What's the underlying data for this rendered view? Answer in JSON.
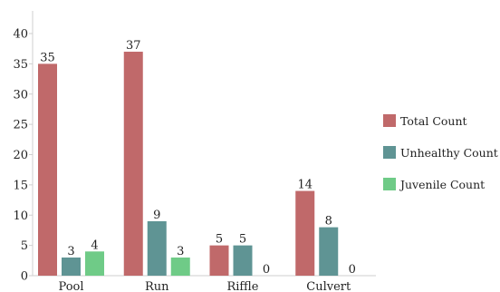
{
  "chart_data": {
    "type": "bar",
    "categories": [
      "Pool",
      "Run",
      "Riffle",
      "Culvert"
    ],
    "series": [
      {
        "name": "Total Count",
        "values": [
          35,
          37,
          5,
          14
        ],
        "color": "#c0696a"
      },
      {
        "name": "Unhealthy Count",
        "values": [
          3,
          9,
          5,
          8
        ],
        "color": "#5f9494"
      },
      {
        "name": "Juvenile Count",
        "values": [
          4,
          3,
          0,
          0
        ],
        "color": "#6fcb87"
      }
    ],
    "yticks": [
      "0",
      "5",
      "10",
      "15",
      "20",
      "25",
      "30",
      "35",
      "40"
    ],
    "ylim": [
      0,
      40
    ],
    "grid": false,
    "legend_position": "right",
    "data_labels": true
  }
}
